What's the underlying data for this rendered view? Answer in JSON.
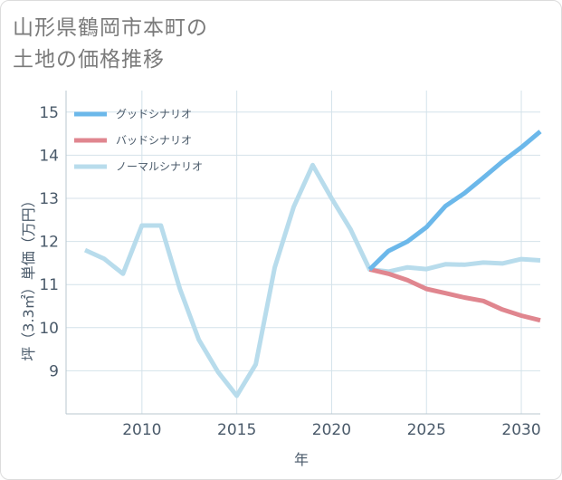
{
  "title": {
    "line1": "山形県鶴岡市本町の",
    "line2": "土地の価格推移"
  },
  "chart_data": {
    "type": "line",
    "title": "山形県鶴岡市本町の土地の価格推移",
    "xlabel": "年",
    "ylabel": "坪（3.3㎡）単価（万円）",
    "xlim": [
      2006,
      2031
    ],
    "ylim": [
      8,
      15.5
    ],
    "x_ticks": [
      2010,
      2015,
      2020,
      2025,
      2030
    ],
    "y_ticks": [
      9,
      10,
      11,
      12,
      13,
      14,
      15
    ],
    "grid": true,
    "legend_position": "top-left",
    "series": [
      {
        "name": "グッドシナリオ",
        "color": "#6cb8ea",
        "x": [
          2022,
          2023,
          2024,
          2025,
          2026,
          2027,
          2028,
          2029,
          2030,
          2031
        ],
        "y": [
          11.35,
          11.78,
          12.0,
          12.33,
          12.82,
          13.12,
          13.48,
          13.85,
          14.18,
          14.55
        ]
      },
      {
        "name": "バッドシナリオ",
        "color": "#e0868f",
        "x": [
          2022,
          2023,
          2024,
          2025,
          2026,
          2027,
          2028,
          2029,
          2030,
          2031
        ],
        "y": [
          11.35,
          11.25,
          11.1,
          10.9,
          10.8,
          10.7,
          10.62,
          10.42,
          10.28,
          10.17
        ]
      },
      {
        "name": "ノーマルシナリオ",
        "color": "#b8dcec",
        "x": [
          2007,
          2008,
          2009,
          2010,
          2011,
          2012,
          2013,
          2014,
          2015,
          2016,
          2017,
          2018,
          2019,
          2020,
          2021,
          2022,
          2023,
          2024,
          2025,
          2026,
          2027,
          2028,
          2029,
          2030,
          2031
        ],
        "y": [
          11.8,
          11.6,
          11.25,
          12.37,
          12.37,
          10.9,
          9.72,
          8.98,
          8.42,
          9.15,
          11.4,
          12.8,
          13.77,
          13.0,
          12.28,
          11.35,
          11.3,
          11.4,
          11.36,
          11.47,
          11.46,
          11.51,
          11.49,
          11.59,
          11.56
        ]
      }
    ]
  }
}
